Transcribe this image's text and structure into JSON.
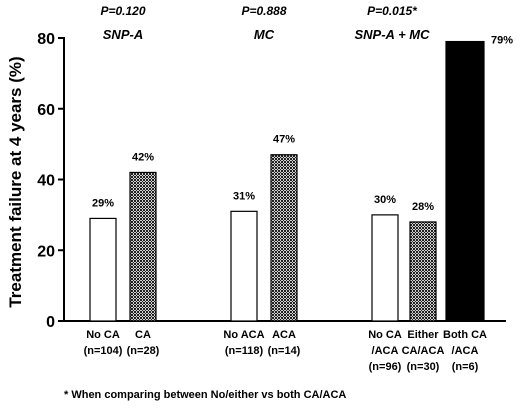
{
  "chart_data": {
    "type": "bar",
    "ylabel": "Treatment failure at 4 years (%)",
    "ylim": [
      0,
      80
    ],
    "yticks": [
      "0",
      "20",
      "40",
      "60",
      "80"
    ],
    "grid": false,
    "groups": [
      {
        "label": "SNP-A",
        "pvalue": "P=0.120",
        "bars": [
          {
            "category": [
              "No CA",
              "(n=104)"
            ],
            "value": 29,
            "value_label": "29%",
            "fill": "white"
          },
          {
            "category": [
              "CA",
              "(n=28)"
            ],
            "value": 42,
            "value_label": "42%",
            "fill": "hatched"
          }
        ]
      },
      {
        "label": "MC",
        "pvalue": "P=0.888",
        "bars": [
          {
            "category": [
              "No ACA",
              "(n=118)"
            ],
            "value": 31,
            "value_label": "31%",
            "fill": "white"
          },
          {
            "category": [
              "ACA",
              "(n=14)"
            ],
            "value": 47,
            "value_label": "47%",
            "fill": "hatched"
          }
        ]
      },
      {
        "label": "SNP-A + MC",
        "pvalue": "P=0.015*",
        "bars": [
          {
            "category": [
              "No CA",
              "/ACA",
              "(n=96)"
            ],
            "value": 30,
            "value_label": "30%",
            "fill": "white"
          },
          {
            "category": [
              "Either",
              "CA/ACA",
              "(n=30)"
            ],
            "value": 28,
            "value_label": "28%",
            "fill": "hatched"
          },
          {
            "category": [
              "Both CA",
              "/ACA",
              "(n=6)"
            ],
            "value": 79,
            "value_label": "79%",
            "fill": "black"
          }
        ]
      }
    ],
    "footnote": "* When comparing between No/either vs both CA/ACA",
    "colors": {
      "white": "#ffffff",
      "black": "#000000",
      "hatch_dark": "#222222",
      "hatch_light": "#cfcfcf"
    }
  }
}
